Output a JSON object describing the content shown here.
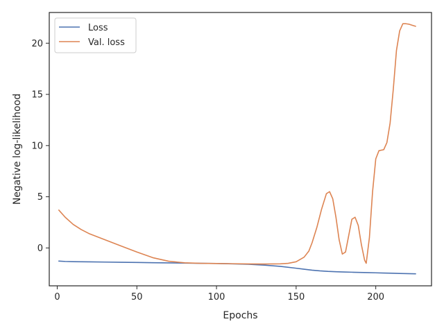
{
  "chart_data": {
    "type": "line",
    "title": "",
    "xlabel": "Epochs",
    "ylabel": "Negative log-likelihood",
    "xlim": [
      -5,
      235
    ],
    "ylim": [
      -3.7,
      23.0
    ],
    "xticks": [
      0,
      50,
      100,
      150,
      200
    ],
    "yticks": [
      0,
      5,
      10,
      15,
      20
    ],
    "grid": false,
    "legend": "upper-left",
    "series": [
      {
        "name": "Loss",
        "color": "#4c72b0",
        "x": [
          1,
          5,
          10,
          20,
          30,
          40,
          50,
          60,
          70,
          80,
          90,
          100,
          110,
          120,
          130,
          140,
          150,
          155,
          160,
          165,
          170,
          175,
          180,
          185,
          190,
          195,
          200,
          205,
          210,
          215,
          220,
          225
        ],
        "y": [
          -1.28,
          -1.32,
          -1.34,
          -1.36,
          -1.38,
          -1.4,
          -1.42,
          -1.44,
          -1.46,
          -1.48,
          -1.5,
          -1.52,
          -1.55,
          -1.6,
          -1.68,
          -1.8,
          -1.98,
          -2.08,
          -2.17,
          -2.24,
          -2.29,
          -2.32,
          -2.35,
          -2.37,
          -2.39,
          -2.41,
          -2.43,
          -2.45,
          -2.47,
          -2.49,
          -2.51,
          -2.53
        ]
      },
      {
        "name": "Val. loss",
        "color": "#dd8452",
        "x": [
          1,
          5,
          10,
          15,
          20,
          30,
          40,
          50,
          60,
          70,
          80,
          90,
          100,
          110,
          120,
          130,
          140,
          145,
          150,
          155,
          158,
          160,
          163,
          166,
          169,
          171,
          173,
          175,
          177,
          179,
          181,
          183,
          185,
          187,
          189,
          191,
          193,
          194,
          196,
          198,
          200,
          202,
          205,
          207,
          209,
          211,
          213,
          215,
          217,
          219,
          221,
          223,
          225
        ],
        "y": [
          3.7,
          3.0,
          2.3,
          1.8,
          1.4,
          0.8,
          0.2,
          -0.4,
          -0.95,
          -1.3,
          -1.45,
          -1.5,
          -1.52,
          -1.54,
          -1.56,
          -1.57,
          -1.55,
          -1.5,
          -1.35,
          -0.9,
          -0.3,
          0.5,
          2.0,
          3.8,
          5.3,
          5.5,
          4.8,
          3.0,
          0.8,
          -0.6,
          -0.4,
          1.2,
          2.8,
          3.0,
          2.2,
          0.3,
          -1.2,
          -1.5,
          1.0,
          5.5,
          8.7,
          9.5,
          9.6,
          10.3,
          12.2,
          15.5,
          19.3,
          21.2,
          21.9,
          21.9,
          21.85,
          21.75,
          21.65
        ]
      }
    ]
  }
}
